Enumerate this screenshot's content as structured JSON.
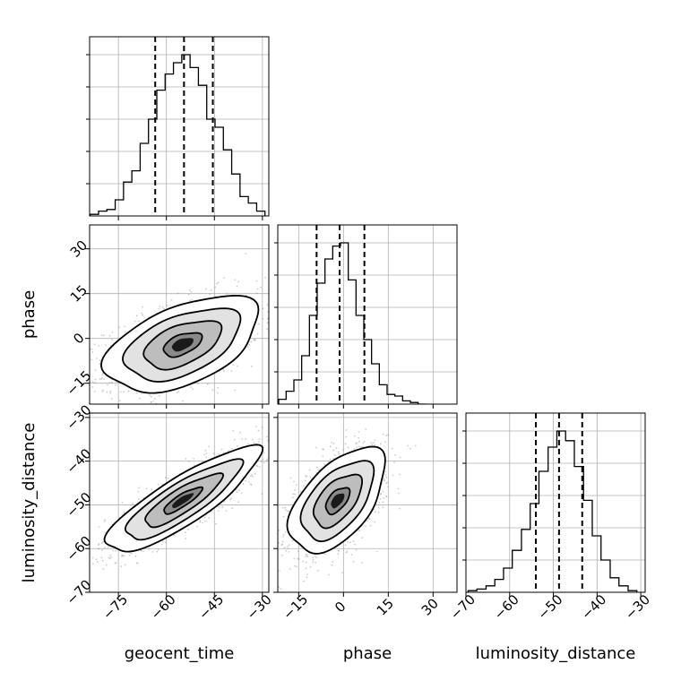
{
  "chart_data": {
    "type": "corner",
    "parameters": [
      "geocent_time",
      "phase",
      "luminosity_distance"
    ],
    "ranges": {
      "geocent_time": [
        -84,
        -28
      ],
      "phase": [
        -22,
        38
      ],
      "luminosity_distance": [
        -70,
        -29
      ]
    },
    "ticks": {
      "geocent_time": [
        -75,
        -60,
        -45,
        -30
      ],
      "phase": [
        -15,
        0,
        15,
        30
      ],
      "luminosity_distance": [
        -70,
        -60,
        -50,
        -40,
        -30
      ]
    },
    "tick_labels": {
      "geocent_time": [
        "−75",
        "−60",
        "−45",
        "−30"
      ],
      "phase": [
        "−15",
        "0",
        "15",
        "30"
      ],
      "luminosity_distance": [
        "−70",
        "−60",
        "−50",
        "−40",
        "−30"
      ]
    },
    "quantiles": {
      "geocent_time": [
        -63.5,
        -54.5,
        -45.5
      ],
      "phase": [
        -9.0,
        -1.3,
        7.0
      ],
      "luminosity_distance": [
        -54.0,
        -48.7,
        -43.4
      ]
    },
    "histograms": {
      "geocent_time": {
        "bin_edges": [
          -83.8,
          -81.2,
          -78.6,
          -76.0,
          -73.4,
          -70.8,
          -68.2,
          -65.6,
          -63.0,
          -60.4,
          -57.8,
          -55.2,
          -52.6,
          -50.0,
          -47.4,
          -44.8,
          -42.2,
          -39.6,
          -37.0,
          -34.4,
          -31.8,
          -29.2
        ],
        "counts": [
          0.01,
          0.03,
          0.04,
          0.1,
          0.21,
          0.28,
          0.45,
          0.6,
          0.78,
          0.88,
          0.95,
          1.0,
          0.92,
          0.81,
          0.6,
          0.55,
          0.41,
          0.26,
          0.12,
          0.08,
          0.03
        ]
      },
      "phase": {
        "bin_edges": [
          -21.7,
          -19.2,
          -16.6,
          -14.0,
          -11.4,
          -8.8,
          -6.2,
          -3.6,
          -1.0,
          1.6,
          4.2,
          6.8,
          9.4,
          12.0,
          14.6,
          17.2,
          19.8,
          22.4,
          25.0,
          27.6
        ],
        "counts": [
          0.03,
          0.08,
          0.15,
          0.3,
          0.55,
          0.75,
          0.9,
          0.98,
          1.0,
          0.77,
          0.55,
          0.4,
          0.25,
          0.12,
          0.06,
          0.05,
          0.02,
          0.01,
          0.0
        ]
      },
      "luminosity_distance": {
        "bin_edges": [
          -69.5,
          -67.5,
          -65.4,
          -63.4,
          -61.4,
          -59.4,
          -57.3,
          -55.3,
          -53.3,
          -51.2,
          -49.2,
          -47.2,
          -45.2,
          -43.1,
          -41.1,
          -39.1,
          -37.0,
          -35.0,
          -32.9,
          -30.9
        ],
        "counts": [
          0.01,
          0.02,
          0.04,
          0.08,
          0.15,
          0.26,
          0.39,
          0.55,
          0.75,
          0.9,
          1.0,
          0.94,
          0.78,
          0.57,
          0.35,
          0.2,
          0.09,
          0.04,
          0.01
        ]
      }
    },
    "pairs": [
      {
        "x": "geocent_time",
        "y": "phase",
        "mean": [
          -55,
          -2
        ],
        "sd": [
          12,
          8
        ],
        "correlation": 0.5
      },
      {
        "x": "geocent_time",
        "y": "luminosity_distance",
        "mean": [
          -55,
          -49
        ],
        "sd": [
          12,
          6
        ],
        "correlation": 0.85
      },
      {
        "x": "phase",
        "y": "luminosity_distance",
        "mean": [
          -2,
          -49
        ],
        "sd": [
          8,
          6
        ],
        "correlation": 0.55
      }
    ],
    "contour_levels_sigma": [
      0.5,
      1.0,
      1.5,
      2.0
    ],
    "grid": true,
    "colors": {
      "points": "#8c8c8c",
      "line": "#000000",
      "grid": "#b0b0b0",
      "quantile_line": "#000000"
    }
  }
}
